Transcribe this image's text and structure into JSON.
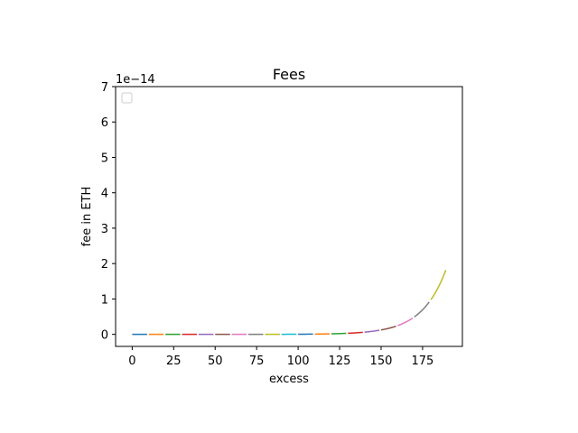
{
  "chart_data": {
    "type": "line",
    "title": "Fees",
    "xlabel": "excess",
    "ylabel": "fee in ETH",
    "y_offset_label": "1e−14",
    "y_scale_exponent": -14,
    "xlim": [
      -10,
      199
    ],
    "ylim": [
      -0.34,
      7.0
    ],
    "x_ticks": [
      0,
      25,
      50,
      75,
      100,
      125,
      150,
      175
    ],
    "y_ticks": [
      0,
      1,
      2,
      3,
      4,
      5,
      6,
      7
    ],
    "grid": false,
    "legend": {
      "placement": "top-left",
      "entries": []
    },
    "curve": {
      "description": "exponential",
      "base": 1.0711,
      "scale": 4.18e-06
    },
    "series": [
      {
        "x_start": 0,
        "x_end": 9,
        "color": "#1f77b4"
      },
      {
        "x_start": 10,
        "x_end": 19,
        "color": "#ff7f0e"
      },
      {
        "x_start": 20,
        "x_end": 29,
        "color": "#2ca02c"
      },
      {
        "x_start": 30,
        "x_end": 39,
        "color": "#d62728"
      },
      {
        "x_start": 40,
        "x_end": 49,
        "color": "#9467bd"
      },
      {
        "x_start": 50,
        "x_end": 59,
        "color": "#8c564b"
      },
      {
        "x_start": 60,
        "x_end": 69,
        "color": "#e377c2"
      },
      {
        "x_start": 70,
        "x_end": 79,
        "color": "#7f7f7f"
      },
      {
        "x_start": 80,
        "x_end": 89,
        "color": "#bcbd22"
      },
      {
        "x_start": 90,
        "x_end": 99,
        "color": "#17becf"
      },
      {
        "x_start": 100,
        "x_end": 109,
        "color": "#1f77b4"
      },
      {
        "x_start": 110,
        "x_end": 119,
        "color": "#ff7f0e"
      },
      {
        "x_start": 120,
        "x_end": 129,
        "color": "#2ca02c"
      },
      {
        "x_start": 130,
        "x_end": 139,
        "color": "#d62728"
      },
      {
        "x_start": 140,
        "x_end": 149,
        "color": "#9467bd"
      },
      {
        "x_start": 150,
        "x_end": 159,
        "color": "#8c564b"
      },
      {
        "x_start": 160,
        "x_end": 169,
        "color": "#e377c2"
      },
      {
        "x_start": 170,
        "x_end": 179,
        "color": "#7f7f7f"
      },
      {
        "x_start": 180,
        "x_end": 189,
        "color": "#bcbd22"
      }
    ]
  }
}
